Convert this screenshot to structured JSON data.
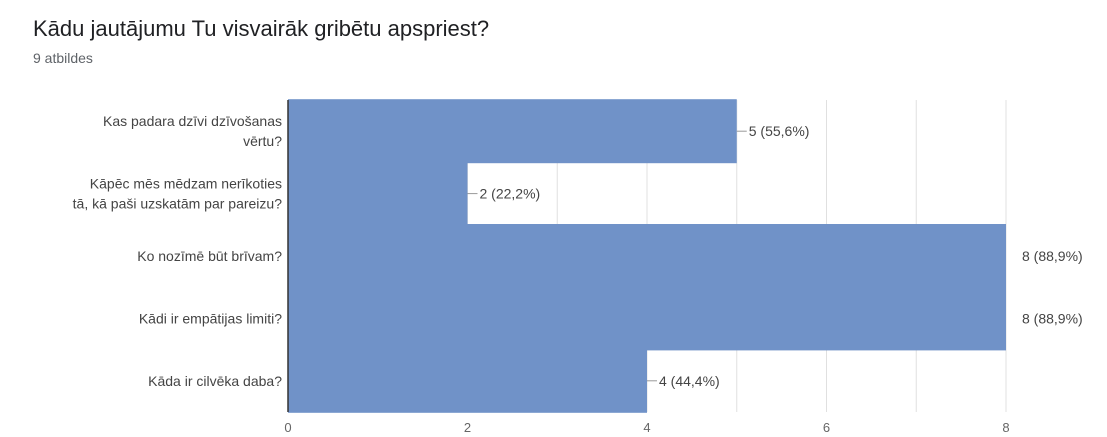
{
  "header": {
    "title": "Kādu jautājumu Tu visvairāk gribētu apspriest?",
    "responses": "9 atbildes"
  },
  "colors": {
    "bar": "#7092c8",
    "grid": "#e0e0e0",
    "axis": "#333333",
    "leader": "#999999"
  },
  "chart_data": {
    "type": "bar",
    "orientation": "horizontal",
    "title": "Kādu jautājumu Tu visvairāk gribētu apspriest?",
    "subtitle": "9 atbildes",
    "categories": [
      [
        "Kas padara dzīvi dzīvošanas",
        "vērtu?"
      ],
      [
        "Kāpēc mēs mēdzam nerīkoties",
        "tā, kā paši uzskatām par pareizu?"
      ],
      [
        "Ko nozīmē būt brīvam?"
      ],
      [
        "Kādi ir empātijas limiti?"
      ],
      [
        "Kāda ir cilvēka daba?"
      ]
    ],
    "values": [
      5,
      2,
      8,
      8,
      4
    ],
    "value_labels": [
      "5 (55,6%)",
      "2 (22,2%)",
      "8 (88,9%)",
      "8 (88,9%)",
      "4 (44,4%)"
    ],
    "xlim": [
      0,
      8
    ],
    "xticks": [
      "0",
      "2",
      "4",
      "6",
      "8"
    ],
    "grid": true,
    "legend": "none"
  }
}
